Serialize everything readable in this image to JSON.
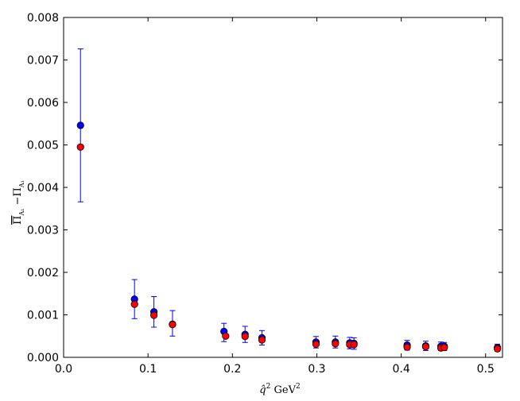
{
  "chart_data": {
    "type": "scatter",
    "xlabel": "q̂² GeV²",
    "ylabel": "Π̄A₁ − ΠA₁",
    "xlim": [
      0.0,
      0.52
    ],
    "ylim": [
      0.0,
      0.008
    ],
    "x_ticks": [
      0.0,
      0.1,
      0.2,
      0.3,
      0.4,
      0.5
    ],
    "x_tick_labels": [
      "0.0",
      "0.1",
      "0.2",
      "0.3",
      "0.4",
      "0.5"
    ],
    "y_ticks": [
      0.0,
      0.001,
      0.002,
      0.003,
      0.004,
      0.005,
      0.006,
      0.007,
      0.008
    ],
    "y_tick_labels": [
      "0.000",
      "0.001",
      "0.002",
      "0.003",
      "0.004",
      "0.005",
      "0.006",
      "0.007",
      "0.008"
    ],
    "grid": false,
    "series": [
      {
        "color": "#0000ff",
        "x": [
          0.02,
          0.084,
          0.107,
          0.129,
          0.19,
          0.215,
          0.235,
          0.299,
          0.322,
          0.339,
          0.344,
          0.407,
          0.429,
          0.447,
          0.451,
          0.514
        ],
        "y": [
          0.00546,
          0.00137,
          0.00107,
          0.00078,
          0.00061,
          0.00054,
          0.00046,
          0.00036,
          0.00036,
          0.00034,
          0.00033,
          0.00029,
          0.00027,
          0.00026,
          0.00026,
          0.00023
        ],
        "err_low": [
          0.00366,
          0.00091,
          0.00071,
          0.0005,
          0.00037,
          0.00035,
          0.00029,
          0.00022,
          0.00022,
          0.0002,
          0.00019,
          0.00017,
          0.00016,
          0.00016,
          0.00016,
          0.00014
        ],
        "err_high": [
          0.00726,
          0.00183,
          0.00143,
          0.0011,
          0.0008,
          0.00073,
          0.00063,
          0.00049,
          0.0005,
          0.00047,
          0.00046,
          0.0004,
          0.00038,
          0.00036,
          0.00035,
          0.00031
        ]
      },
      {
        "color": "#ff0000",
        "x": [
          0.02,
          0.084,
          0.107,
          0.129,
          0.192,
          0.215,
          0.235,
          0.299,
          0.322,
          0.339,
          0.344,
          0.407,
          0.429,
          0.447,
          0.451,
          0.514
        ],
        "y": [
          0.00495,
          0.00125,
          0.00099,
          0.00077,
          0.0005,
          0.00049,
          0.00041,
          0.00031,
          0.00032,
          0.0003,
          0.0003,
          0.00024,
          0.00025,
          0.00022,
          0.00023,
          0.0002
        ]
      }
    ]
  }
}
